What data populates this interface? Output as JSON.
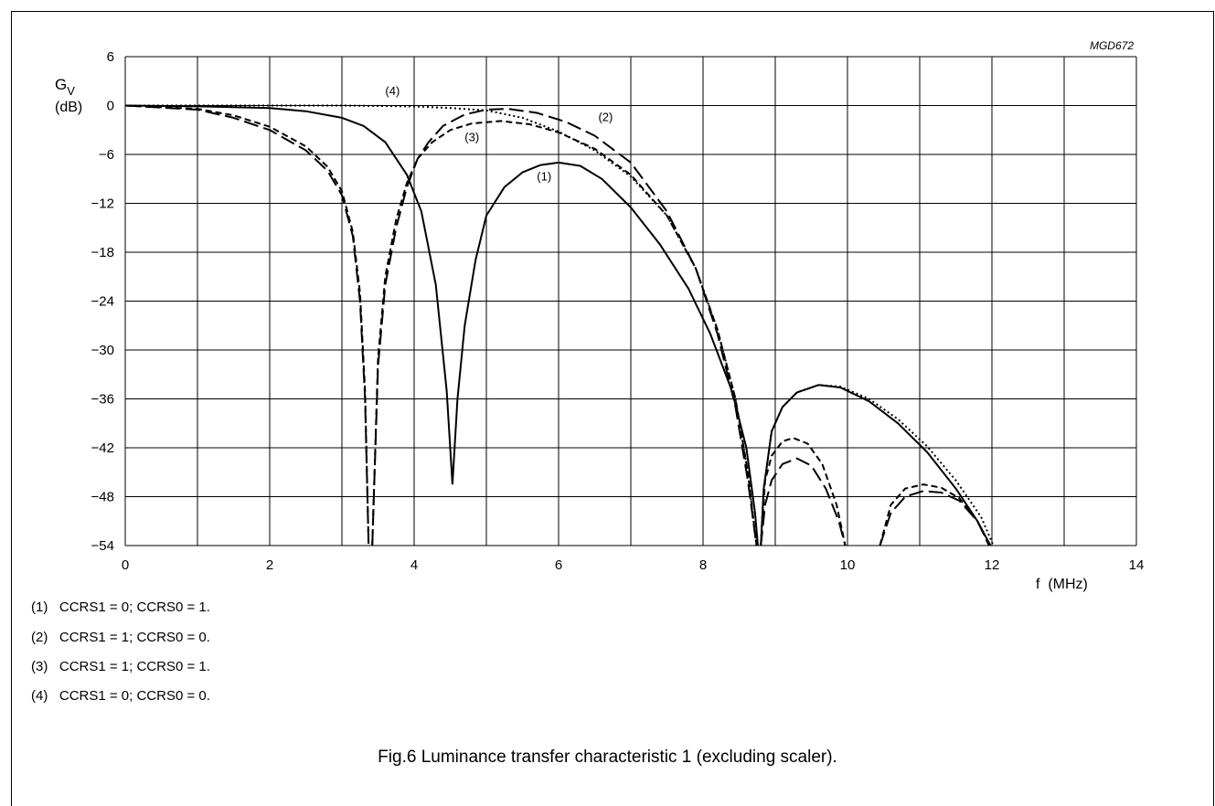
{
  "figure_id": "MGD672",
  "caption": "Fig.6  Luminance transfer characteristic 1 (excluding scaler).",
  "legend_notes": [
    {
      "tag": "(1)",
      "text": "CCRS1 = 0; CCRS0 = 1."
    },
    {
      "tag": "(2)",
      "text": "CCRS1 = 1; CCRS0 = 0."
    },
    {
      "tag": "(3)",
      "text": "CCRS1 = 1; CCRS0 = 1."
    },
    {
      "tag": "(4)",
      "text": "CCRS1 = 0; CCRS0 = 0."
    }
  ],
  "chart_data": {
    "type": "line",
    "title": "",
    "ylabel_main": "G",
    "ylabel_sub": "V",
    "yunit": "(dB)",
    "xlabel": "f  (MHz)",
    "xlim": [
      0,
      14
    ],
    "ylim": [
      -54,
      6
    ],
    "xticks": [
      0,
      2,
      4,
      6,
      8,
      10,
      12,
      14
    ],
    "yticks": [
      6,
      0,
      -6,
      -12,
      -18,
      -24,
      -30,
      -36,
      -42,
      -48,
      -54
    ],
    "ytick_labels": [
      "6",
      "0",
      "−6",
      "−12",
      "−18",
      "−24",
      "−30",
      "−36",
      "−42",
      "−48",
      "−54"
    ],
    "grid": true,
    "grid_x_step": 1,
    "series": [
      {
        "name": "(1)",
        "style": "solid",
        "segments": [
          {
            "x": [
              0,
              1,
              2,
              2.5,
              3,
              3.3,
              3.6,
              3.9,
              4.1,
              4.3,
              4.45,
              4.53
            ],
            "y": [
              0,
              -0.1,
              -0.3,
              -0.7,
              -1.5,
              -2.5,
              -4.5,
              -8.5,
              -13,
              -22,
              -35,
              -46.5
            ]
          },
          {
            "x": [
              4.53,
              4.6,
              4.7,
              4.85,
              5.0,
              5.25,
              5.5,
              5.75,
              6.0,
              6.3,
              6.6,
              7.0,
              7.4,
              7.8,
              8.1,
              8.4,
              8.6,
              8.72,
              8.76
            ],
            "y": [
              -46.5,
              -36,
              -27,
              -19,
              -13.5,
              -10,
              -8.2,
              -7.3,
              -7,
              -7.4,
              -9,
              -12.5,
              -17,
              -22.5,
              -28,
              -35,
              -42,
              -50,
              -54
            ]
          },
          {
            "x": [
              8.8,
              8.84,
              8.95,
              9.1,
              9.3,
              9.6,
              9.9,
              10.3,
              10.7,
              11.1,
              11.5,
              11.8,
              11.98
            ],
            "y": [
              -54,
              -47,
              -40,
              -37,
              -35.2,
              -34.3,
              -34.6,
              -36.3,
              -39,
              -42.5,
              -47,
              -51,
              -54
            ]
          }
        ]
      },
      {
        "name": "(2)",
        "style": "longdash",
        "segments": [
          {
            "x": [
              0,
              1,
              1.5,
              2,
              2.5,
              2.8,
              3.0,
              3.15,
              3.25,
              3.32,
              3.37
            ],
            "y": [
              0,
              -0.5,
              -1.5,
              -3,
              -5.5,
              -8,
              -11,
              -16,
              -24,
              -36,
              -54
            ]
          },
          {
            "x": [
              3.42,
              3.5,
              3.6,
              3.75,
              3.9,
              4.05,
              4.2,
              4.4,
              4.7,
              5.0,
              5.3,
              5.7,
              6.1,
              6.5,
              7.0,
              7.5,
              7.9,
              8.2,
              8.45,
              8.62,
              8.74
            ],
            "y": [
              -54,
              -32,
              -22,
              -15,
              -10,
              -6.5,
              -4.5,
              -2.5,
              -1.1,
              -0.5,
              -0.4,
              -0.9,
              -2,
              -3.7,
              -7,
              -13,
              -20,
              -28,
              -37,
              -46,
              -54
            ]
          },
          {
            "x": [
              8.8,
              8.86,
              8.95,
              9.1,
              9.3,
              9.5,
              9.7,
              9.88,
              9.97
            ],
            "y": [
              -54,
              -49,
              -46,
              -44,
              -43.3,
              -44.2,
              -47,
              -51,
              -54
            ]
          },
          {
            "x": [
              10.45,
              10.6,
              10.8,
              11.05,
              11.3,
              11.55,
              11.8,
              11.96
            ],
            "y": [
              -54,
              -50,
              -48,
              -47.3,
              -47.5,
              -48.5,
              -51,
              -54
            ]
          }
        ]
      },
      {
        "name": "(3)",
        "style": "shortdash",
        "segments": [
          {
            "x": [
              0,
              1,
              1.5,
              2,
              2.5,
              2.8,
              3.0,
              3.15,
              3.25,
              3.32,
              3.37
            ],
            "y": [
              0,
              -0.4,
              -1.2,
              -2.6,
              -5,
              -7.5,
              -10.5,
              -15.5,
              -23,
              -35,
              -54
            ]
          },
          {
            "x": [
              3.42,
              3.5,
              3.6,
              3.75,
              3.9,
              4.05,
              4.25,
              4.5,
              4.8,
              5.2,
              5.6,
              6.0,
              6.5,
              7.0,
              7.5,
              7.9,
              8.2,
              8.45,
              8.62,
              8.74
            ],
            "y": [
              -54,
              -31,
              -21,
              -14,
              -9.5,
              -6.5,
              -4.5,
              -3,
              -2.2,
              -1.9,
              -2.3,
              -3.3,
              -5.3,
              -8.5,
              -13.5,
              -20,
              -27.5,
              -36,
              -45,
              -54
            ]
          },
          {
            "x": [
              8.8,
              8.86,
              8.95,
              9.1,
              9.25,
              9.45,
              9.65,
              9.85,
              9.97
            ],
            "y": [
              -54,
              -46,
              -43,
              -41.2,
              -40.8,
              -41.5,
              -44,
              -49,
              -54
            ]
          },
          {
            "x": [
              10.45,
              10.6,
              10.8,
              11.05,
              11.3,
              11.55,
              11.8,
              11.97
            ],
            "y": [
              -54,
              -49,
              -47,
              -46.5,
              -46.9,
              -48.2,
              -51,
              -54
            ]
          }
        ]
      },
      {
        "name": "(4)",
        "style": "dotted",
        "segments": [
          {
            "x": [
              0,
              2,
              3,
              4,
              4.5,
              5,
              5.5,
              6.0,
              6.5,
              7.0,
              7.5,
              7.9,
              8.2,
              8.45,
              8.62,
              8.74
            ],
            "y": [
              0,
              0,
              0,
              -0.1,
              -0.3,
              -0.6,
              -1.5,
              -3.2,
              -5.5,
              -8.7,
              -13.5,
              -20,
              -27.5,
              -36,
              -45,
              -54
            ]
          },
          {
            "x": [
              8.8,
              8.84,
              8.95,
              9.1,
              9.3,
              9.6,
              9.9,
              10.3,
              10.7,
              11.1,
              11.5,
              11.85,
              12.02
            ],
            "y": [
              -54,
              -47,
              -40,
              -37,
              -35.2,
              -34.3,
              -34.5,
              -36,
              -38.5,
              -41.8,
              -46,
              -50.5,
              -54
            ]
          }
        ]
      }
    ],
    "curve_labels": [
      {
        "text": "(1)",
        "x": 5.7,
        "y": -9.2
      },
      {
        "text": "(2)",
        "x": 6.55,
        "y": -1.9
      },
      {
        "text": "(3)",
        "x": 4.7,
        "y": -4.4
      },
      {
        "text": "(4)",
        "x": 3.6,
        "y": 1.3
      }
    ]
  }
}
